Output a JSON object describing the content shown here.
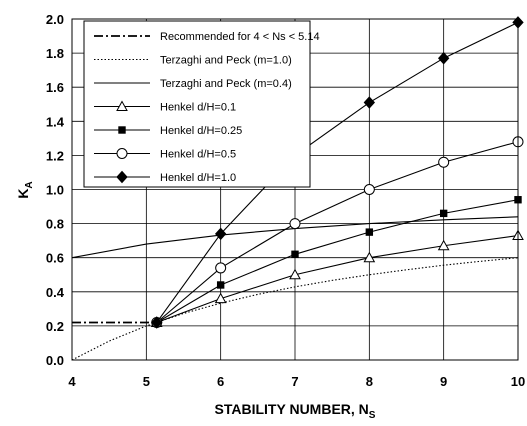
{
  "chart_data": {
    "type": "line",
    "title": "",
    "xlabel": {
      "main": "STABILITY NUMBER, N",
      "sub": "S"
    },
    "ylabel": {
      "main": "K",
      "sub": "A"
    },
    "xlim": [
      4,
      10
    ],
    "ylim": [
      0,
      2
    ],
    "xticks": [
      "4",
      "5",
      "6",
      "7",
      "8",
      "9",
      "10"
    ],
    "yticks": [
      "0.0",
      "0.2",
      "0.4",
      "0.6",
      "0.8",
      "1.0",
      "1.2",
      "1.4",
      "1.6",
      "1.8",
      "2.0"
    ],
    "grid": true,
    "legend_position": "top-left",
    "series": [
      {
        "name": "Recommended for 4 < Ns < 5.14",
        "style": "dashdot",
        "marker": "none",
        "color": "#000000",
        "points": [
          [
            4,
            0.22
          ],
          [
            5.14,
            0.22
          ]
        ]
      },
      {
        "name": "Terzaghi and Peck (m=1.0)",
        "style": "dotted",
        "marker": "none",
        "color": "#000000",
        "points": [
          [
            4,
            0.0
          ],
          [
            4.5,
            0.111
          ],
          [
            5,
            0.2
          ],
          [
            5.5,
            0.273
          ],
          [
            6,
            0.333
          ],
          [
            6.5,
            0.385
          ],
          [
            7,
            0.429
          ],
          [
            7.5,
            0.467
          ],
          [
            8,
            0.5
          ],
          [
            8.5,
            0.529
          ],
          [
            9,
            0.556
          ],
          [
            9.5,
            0.579
          ],
          [
            10,
            0.6
          ]
        ]
      },
      {
        "name": "Terzaghi and Peck (m=0.4)",
        "style": "solid",
        "marker": "none",
        "color": "#000000",
        "points": [
          [
            4,
            0.6
          ],
          [
            5,
            0.68
          ],
          [
            6,
            0.733
          ],
          [
            7,
            0.771
          ],
          [
            8,
            0.8
          ],
          [
            9,
            0.822
          ],
          [
            10,
            0.84
          ]
        ]
      },
      {
        "name": "Henkel d/H=0.1",
        "style": "solid",
        "marker": "triangle-open",
        "color": "#000000",
        "points": [
          [
            5.14,
            0.22
          ],
          [
            6,
            0.36
          ],
          [
            7,
            0.5
          ],
          [
            8,
            0.6
          ],
          [
            9,
            0.67
          ],
          [
            10,
            0.73
          ]
        ]
      },
      {
        "name": "Henkel d/H=0.25",
        "style": "solid",
        "marker": "square-filled",
        "color": "#000000",
        "points": [
          [
            5.14,
            0.22
          ],
          [
            6,
            0.44
          ],
          [
            7,
            0.62
          ],
          [
            8,
            0.75
          ],
          [
            9,
            0.86
          ],
          [
            10,
            0.94
          ]
        ]
      },
      {
        "name": "Henkel d/H=0.5",
        "style": "solid",
        "marker": "circle-open",
        "color": "#000000",
        "points": [
          [
            5.14,
            0.22
          ],
          [
            6,
            0.54
          ],
          [
            7,
            0.8
          ],
          [
            8,
            1.0
          ],
          [
            9,
            1.16
          ],
          [
            10,
            1.28
          ]
        ]
      },
      {
        "name": "Henkel d/H=1.0",
        "style": "solid",
        "marker": "diamond-filled",
        "color": "#000000",
        "points": [
          [
            5.14,
            0.22
          ],
          [
            6,
            0.74
          ],
          [
            7,
            1.2
          ],
          [
            8,
            1.51
          ],
          [
            9,
            1.77
          ],
          [
            10,
            1.98
          ]
        ]
      }
    ]
  }
}
